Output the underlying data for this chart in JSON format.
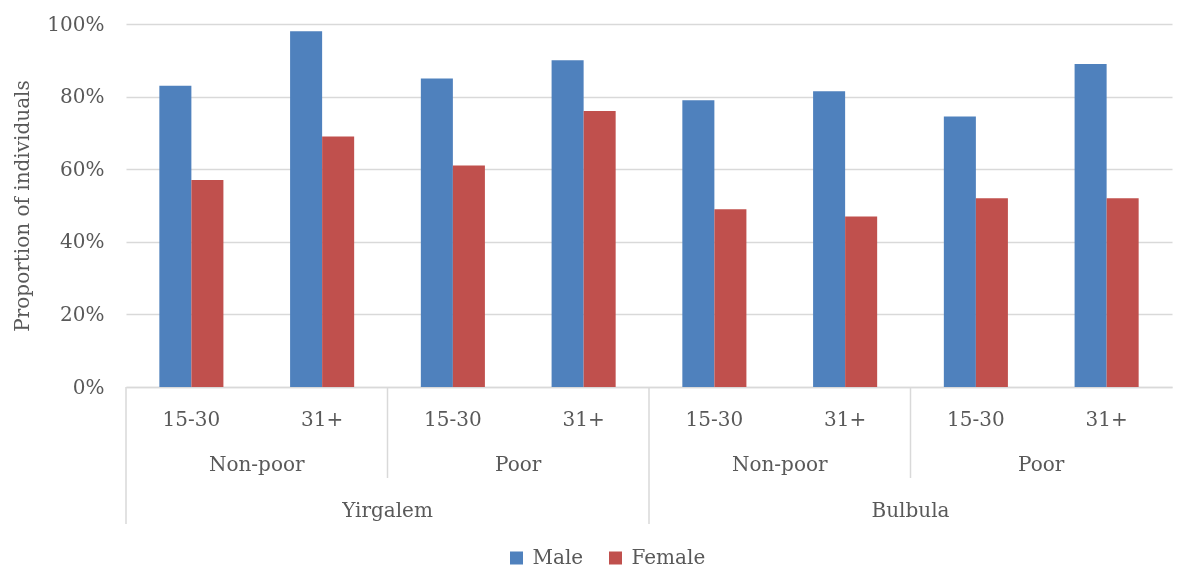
{
  "chart_data": {
    "type": "bar",
    "categories": [
      "15-30",
      "31+",
      "15-30",
      "31+",
      "15-30",
      "31+",
      "15-30",
      "31+"
    ],
    "series": [
      {
        "name": "Male",
        "color": "#4f81bd",
        "values": [
          83,
          98,
          85,
          90,
          79,
          81.5,
          74.5,
          89
        ]
      },
      {
        "name": "Female",
        "color": "#c0504d",
        "values": [
          57,
          69,
          61,
          76,
          49,
          47,
          52,
          52
        ]
      }
    ],
    "ylabel": "Proportion of individuals",
    "ylim": [
      0,
      100
    ],
    "yticks": [
      {
        "value": 0,
        "label": "0%"
      },
      {
        "value": 20,
        "label": "20%"
      },
      {
        "value": 40,
        "label": "40%"
      },
      {
        "value": 60,
        "label": "60%"
      },
      {
        "value": 80,
        "label": "80%"
      },
      {
        "value": 100,
        "label": "100%"
      }
    ],
    "grid": "y",
    "legend": "bottom",
    "annotations": [
      "Non-poor",
      "Poor",
      "Non-poor",
      "Poor",
      "Yirgalem",
      "Bulbula"
    ]
  }
}
